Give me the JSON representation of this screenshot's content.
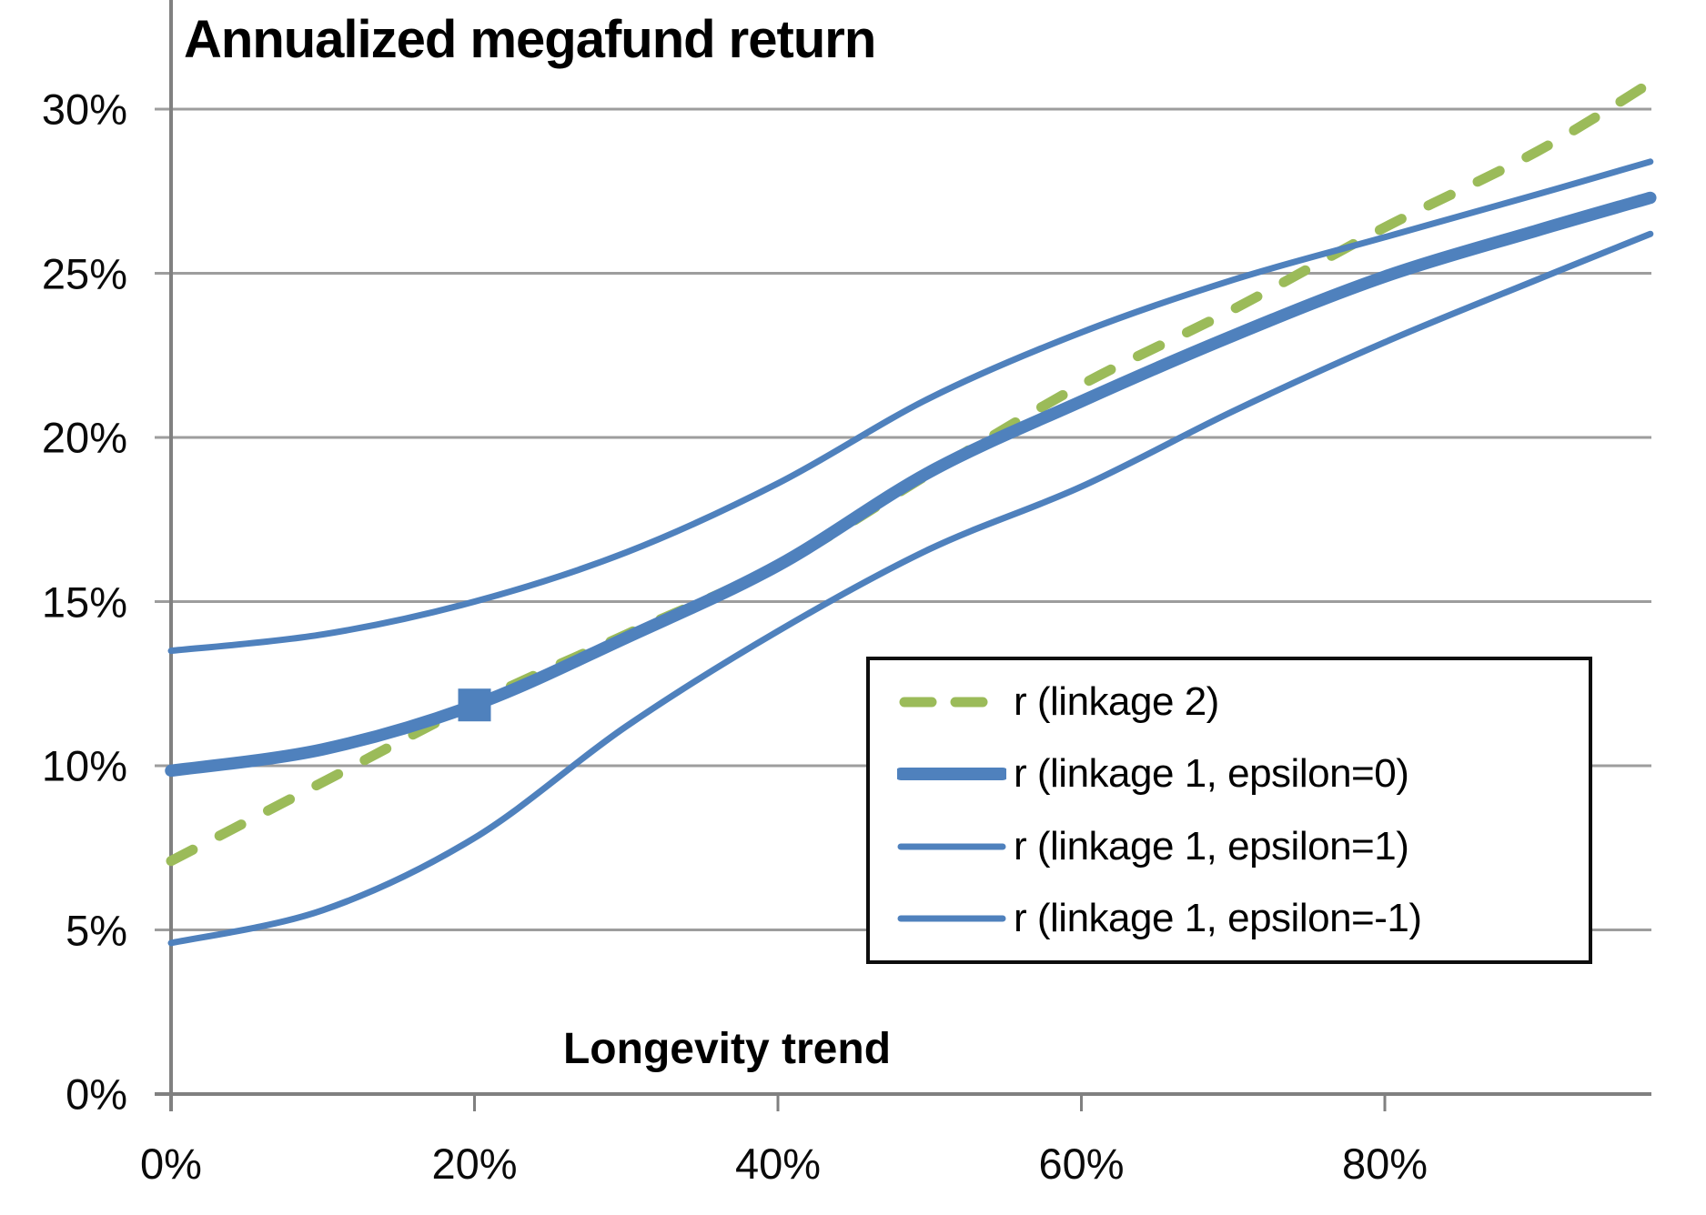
{
  "chart": {
    "title": "Annualized megafund return",
    "x_axis": {
      "label": "Longevity trend",
      "tick_labels": [
        "0%",
        "20%",
        "40%",
        "60%",
        "80%"
      ],
      "tick_values": [
        0,
        20,
        40,
        60,
        80
      ],
      "min": 0,
      "max": 97.5
    },
    "y_axis": {
      "tick_labels": [
        "0%",
        "5%",
        "10%",
        "15%",
        "20%",
        "25%",
        "30%"
      ],
      "tick_values": [
        0,
        5,
        10,
        15,
        20,
        25,
        30
      ],
      "min": 0,
      "max": 33.1,
      "gridlines": "horizontal"
    },
    "colors": {
      "background": "#ffffff",
      "axis": "#808080",
      "gridline": "#9d9d9d",
      "text": "#000000",
      "legend_border": "#0d0d0d",
      "series_blue": "#4f81bd",
      "series_green": "#9bbb59"
    }
  },
  "chart_data": {
    "type": "line",
    "title": "Annualized megafund return",
    "xlabel": "Longevity trend",
    "ylabel": "",
    "xlim": [
      0,
      97.5
    ],
    "ylim": [
      0,
      33.1
    ],
    "grid": "horizontal only",
    "legend_position": "inside lower right",
    "x": [
      0,
      10,
      20,
      30,
      40,
      50,
      60,
      70,
      80,
      90,
      97.5
    ],
    "series": [
      {
        "name": "r (linkage 2)",
        "color": "#9bbb59",
        "style": "dashed",
        "weight": "medium",
        "values": [
          7.1,
          9.5,
          11.9,
          14.0,
          16.1,
          18.9,
          21.6,
          23.9,
          26.4,
          28.7,
          30.8
        ]
      },
      {
        "name": "r (linkage 1, epsilon=0)",
        "color": "#4f81bd",
        "style": "solid",
        "weight": "thick",
        "values": [
          9.85,
          10.5,
          11.85,
          13.9,
          16.1,
          18.95,
          21.1,
          23.1,
          24.9,
          26.3,
          27.3
        ],
        "marker": {
          "x": 20,
          "y": 11.85,
          "shape": "square"
        }
      },
      {
        "name": "r (linkage 1, epsilon=1)",
        "color": "#4f81bd",
        "style": "solid",
        "weight": "thin",
        "values": [
          13.5,
          14.0,
          15.0,
          16.5,
          18.6,
          21.2,
          23.2,
          24.8,
          26.1,
          27.4,
          28.4
        ]
      },
      {
        "name": "r (linkage 1, epsilon=-1)",
        "color": "#4f81bd",
        "style": "solid",
        "weight": "thin",
        "values": [
          4.6,
          5.6,
          7.8,
          11.2,
          14.1,
          16.6,
          18.5,
          20.8,
          22.9,
          24.8,
          26.2
        ]
      }
    ]
  }
}
